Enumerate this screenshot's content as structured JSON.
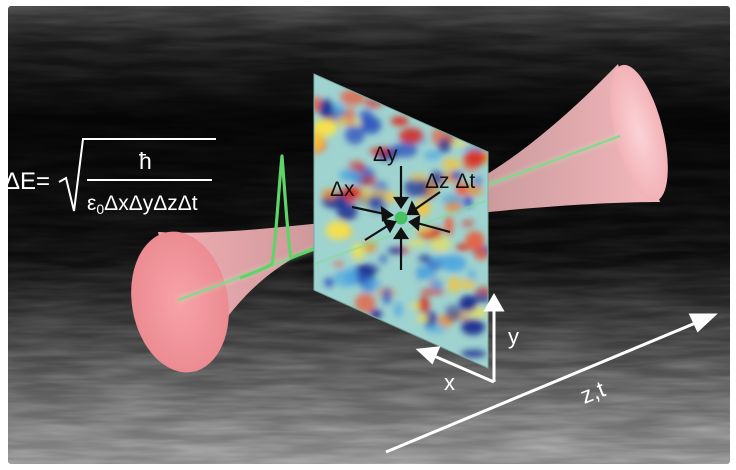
{
  "formula": {
    "lhs": "ΔE=",
    "numerator": "ħ",
    "denominator": "ε",
    "denominator_sub": "0",
    "denominator_rest": "ΔxΔyΔzΔt"
  },
  "probe_labels": {
    "dx": "Δx",
    "dy": "Δy",
    "dzdt": "Δz Δt"
  },
  "axes": {
    "x": "x",
    "y": "y",
    "zt": "z,t"
  },
  "colors": {
    "beam_fill": "#f3b3b8",
    "beam_mouth": "#ef8f96",
    "pulse": "#5fd468",
    "arrows": "#ffffff",
    "probe_arrows": "#111111"
  }
}
